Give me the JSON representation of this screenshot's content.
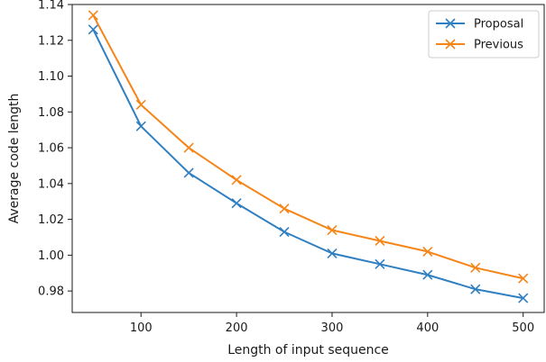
{
  "chart_data": {
    "type": "line",
    "title": "",
    "xlabel": "Length of input sequence",
    "ylabel": "Average code length",
    "x": [
      50,
      100,
      150,
      200,
      250,
      300,
      350,
      400,
      450,
      500
    ],
    "xlim": [
      28,
      522
    ],
    "ylim": [
      0.968,
      1.14
    ],
    "xticks": [
      100,
      200,
      300,
      400,
      500
    ],
    "yticks": [
      0.98,
      1.0,
      1.02,
      1.04,
      1.06,
      1.08,
      1.1,
      1.12,
      1.14
    ],
    "ytick_labels": [
      "0.98",
      "1.00",
      "1.02",
      "1.04",
      "1.06",
      "1.08",
      "1.10",
      "1.12",
      "1.14"
    ],
    "grid": false,
    "legend_position": "top-right",
    "series": [
      {
        "name": "Proposal",
        "color": "#2f7fc1",
        "marker": "x",
        "values": [
          1.126,
          1.072,
          1.046,
          1.029,
          1.013,
          1.001,
          0.995,
          0.989,
          0.981,
          0.976
        ]
      },
      {
        "name": "Previous",
        "color": "#f58518",
        "marker": "x",
        "values": [
          1.134,
          1.084,
          1.06,
          1.042,
          1.026,
          1.014,
          1.008,
          1.002,
          0.993,
          0.987
        ]
      }
    ]
  }
}
